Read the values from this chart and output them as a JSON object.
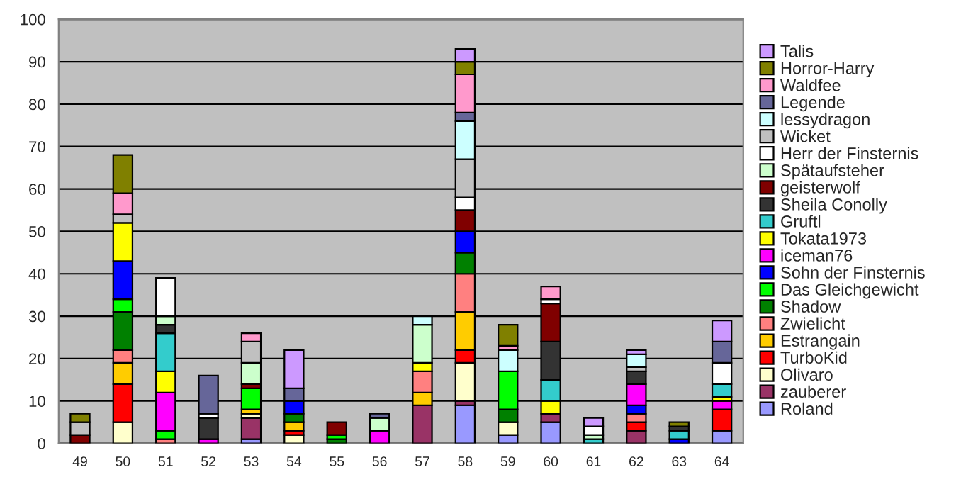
{
  "chart_data": {
    "type": "bar",
    "stacked": true,
    "categories": [
      "49",
      "50",
      "51",
      "52",
      "53",
      "54",
      "55",
      "56",
      "57",
      "58",
      "59",
      "60",
      "61",
      "62",
      "63",
      "64"
    ],
    "ylim": [
      0,
      100
    ],
    "yticks": [
      0,
      10,
      20,
      30,
      40,
      50,
      60,
      70,
      80,
      90,
      100
    ],
    "grid": "y",
    "legend": "right",
    "series": [
      {
        "name": "Roland",
        "color": "#9999ff",
        "values": [
          0,
          0,
          0,
          0,
          1,
          0,
          0,
          0,
          0,
          9,
          2,
          5,
          0,
          0,
          0,
          3
        ]
      },
      {
        "name": "zauberer",
        "color": "#993366",
        "values": [
          0,
          0,
          0,
          0,
          5,
          0,
          0,
          0,
          9,
          1,
          0,
          2,
          0,
          3,
          0,
          0
        ]
      },
      {
        "name": "Olivaro",
        "color": "#ffffcc",
        "values": [
          0,
          5,
          0,
          0,
          1,
          2,
          0,
          0,
          0,
          9,
          3,
          0,
          0,
          0,
          0,
          0
        ]
      },
      {
        "name": "TurboKid",
        "color": "#ff0000",
        "values": [
          0,
          9,
          0,
          0,
          0,
          1,
          0,
          0,
          0,
          3,
          0,
          0,
          0,
          2,
          0,
          5
        ]
      },
      {
        "name": "Estrangain",
        "color": "#ffcc00",
        "values": [
          0,
          5,
          0,
          0,
          1,
          2,
          0,
          0,
          3,
          9,
          0,
          0,
          0,
          0,
          0,
          0
        ]
      },
      {
        "name": "Zwielicht",
        "color": "#ff8080",
        "values": [
          0,
          3,
          1,
          0,
          0,
          0,
          0,
          0,
          5,
          9,
          0,
          0,
          0,
          2,
          0,
          0
        ]
      },
      {
        "name": "Shadow",
        "color": "#008000",
        "values": [
          0,
          9,
          0,
          0,
          0,
          2,
          1,
          0,
          0,
          5,
          3,
          0,
          0,
          0,
          0,
          0
        ]
      },
      {
        "name": "Das Gleichgewicht",
        "color": "#00ff00",
        "values": [
          0,
          3,
          2,
          0,
          5,
          0,
          1,
          0,
          0,
          0,
          9,
          0,
          0,
          0,
          0,
          0
        ]
      },
      {
        "name": "Sohn der Finsternis",
        "color": "#0000ff",
        "values": [
          0,
          9,
          0,
          0,
          0,
          3,
          0,
          0,
          0,
          5,
          0,
          0,
          0,
          2,
          1,
          0
        ]
      },
      {
        "name": "iceman76",
        "color": "#ff00ff",
        "values": [
          0,
          0,
          9,
          1,
          0,
          0,
          0,
          3,
          0,
          0,
          0,
          0,
          0,
          5,
          0,
          2
        ]
      },
      {
        "name": "Tokata1973",
        "color": "#ffff00",
        "values": [
          0,
          9,
          5,
          0,
          0,
          0,
          0,
          0,
          2,
          0,
          0,
          3,
          0,
          0,
          0,
          1
        ]
      },
      {
        "name": "Gruftl",
        "color": "#33cccc",
        "values": [
          0,
          0,
          9,
          0,
          0,
          0,
          0,
          0,
          0,
          0,
          0,
          5,
          1,
          0,
          2,
          3
        ]
      },
      {
        "name": "Sheila Conolly",
        "color": "#333333",
        "values": [
          0,
          0,
          2,
          5,
          0,
          0,
          0,
          0,
          0,
          0,
          0,
          9,
          0,
          3,
          1,
          0
        ]
      },
      {
        "name": "geisterwolf",
        "color": "#800000",
        "values": [
          2,
          0,
          0,
          0,
          1,
          0,
          3,
          0,
          0,
          5,
          0,
          9,
          0,
          0,
          0,
          0
        ]
      },
      {
        "name": "Spätaufsteher",
        "color": "#ccffcc",
        "values": [
          0,
          0,
          2,
          0,
          5,
          0,
          0,
          3,
          9,
          0,
          0,
          0,
          1,
          0,
          0,
          0
        ]
      },
      {
        "name": "Herr der Finsternis",
        "color": "#ffffff",
        "values": [
          0,
          0,
          9,
          1,
          0,
          0,
          0,
          0,
          0,
          3,
          0,
          1,
          2,
          0,
          0,
          5
        ]
      },
      {
        "name": "Wicket",
        "color": "#c0c0c0",
        "values": [
          3,
          2,
          0,
          0,
          5,
          0,
          0,
          0,
          0,
          9,
          0,
          0,
          0,
          1,
          0,
          0
        ]
      },
      {
        "name": "lessydragon",
        "color": "#ccffff",
        "values": [
          0,
          0,
          0,
          0,
          0,
          0,
          0,
          0,
          2,
          9,
          5,
          0,
          0,
          3,
          0,
          0
        ]
      },
      {
        "name": "Legende",
        "color": "#666699",
        "values": [
          0,
          0,
          0,
          9,
          0,
          3,
          0,
          1,
          0,
          2,
          0,
          0,
          0,
          0,
          0,
          5
        ]
      },
      {
        "name": "Waldfee",
        "color": "#ff99cc",
        "values": [
          0,
          5,
          0,
          0,
          2,
          0,
          0,
          0,
          0,
          9,
          1,
          3,
          0,
          0,
          0,
          0
        ]
      },
      {
        "name": "Horror-Harry",
        "color": "#808000",
        "values": [
          2,
          9,
          0,
          0,
          0,
          0,
          0,
          0,
          0,
          3,
          5,
          0,
          0,
          0,
          1,
          0
        ]
      },
      {
        "name": "Talis",
        "color": "#cc99ff",
        "values": [
          0,
          0,
          0,
          0,
          0,
          9,
          0,
          0,
          0,
          3,
          0,
          0,
          2,
          1,
          0,
          5
        ]
      }
    ]
  }
}
